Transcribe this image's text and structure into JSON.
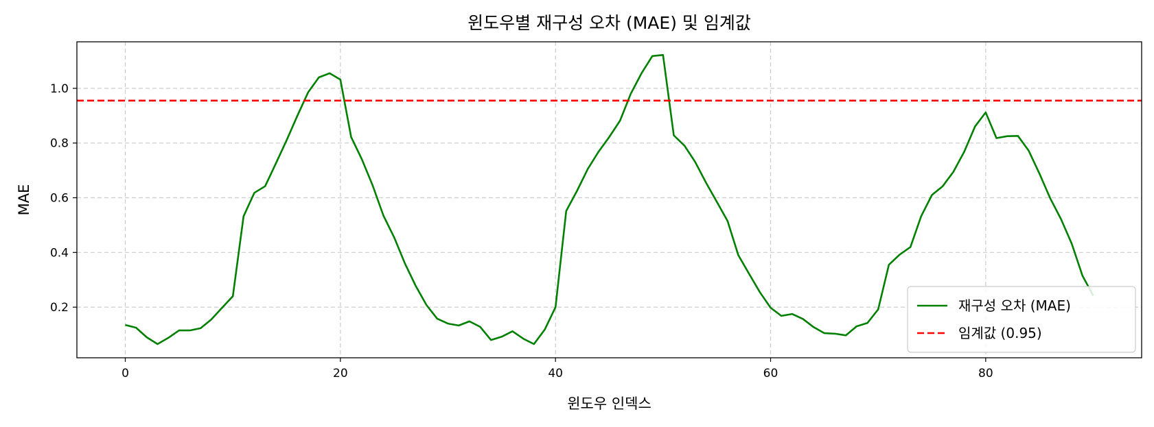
{
  "chart_data": {
    "type": "line",
    "title": "윈도우별 재구성 오차 (MAE) 및 임계값",
    "xlabel": "윈도우 인덱스",
    "ylabel": "MAE",
    "xlim": [
      -4.5,
      94.5
    ],
    "ylim": [
      0.015,
      1.17
    ],
    "xticks": [
      0,
      20,
      40,
      60,
      80
    ],
    "xtick_labels": [
      "0",
      "20",
      "40",
      "60",
      "80"
    ],
    "yticks": [
      0.2,
      0.4,
      0.6,
      0.8,
      1.0
    ],
    "ytick_labels": [
      "0.2",
      "0.4",
      "0.6",
      "0.8",
      "1.0"
    ],
    "grid": true,
    "legend_position": "lower-right",
    "series": [
      {
        "name": "재구성 오차 (MAE)",
        "color": "#008000",
        "style": "solid",
        "x": [
          0,
          1,
          2,
          3,
          4,
          5,
          6,
          7,
          8,
          9,
          10,
          11,
          12,
          13,
          14,
          15,
          16,
          17,
          18,
          19,
          20,
          21,
          22,
          23,
          24,
          25,
          26,
          27,
          28,
          29,
          30,
          31,
          32,
          33,
          34,
          35,
          36,
          37,
          38,
          39,
          40,
          41,
          42,
          43,
          44,
          45,
          46,
          47,
          48,
          49,
          50,
          51,
          52,
          53,
          54,
          55,
          56,
          57,
          58,
          59,
          60,
          61,
          62,
          63,
          64,
          65,
          66,
          67,
          68,
          69,
          70,
          71,
          72,
          73,
          74,
          75,
          76,
          77,
          78,
          79,
          80,
          81,
          82,
          83,
          84,
          85,
          86,
          87,
          88,
          89,
          90
        ],
        "y": [
          0.135,
          0.125,
          0.09,
          0.065,
          0.088,
          0.115,
          0.115,
          0.123,
          0.155,
          0.198,
          0.24,
          0.532,
          0.618,
          0.642,
          0.725,
          0.81,
          0.9,
          0.985,
          1.04,
          1.055,
          1.032,
          0.822,
          0.74,
          0.645,
          0.535,
          0.455,
          0.36,
          0.278,
          0.208,
          0.158,
          0.14,
          0.133,
          0.148,
          0.128,
          0.08,
          0.092,
          0.112,
          0.085,
          0.065,
          0.118,
          0.2,
          0.552,
          0.625,
          0.705,
          0.768,
          0.822,
          0.882,
          0.98,
          1.055,
          1.118,
          1.122,
          0.828,
          0.79,
          0.73,
          0.655,
          0.585,
          0.515,
          0.39,
          0.322,
          0.255,
          0.198,
          0.168,
          0.175,
          0.157,
          0.127,
          0.105,
          0.103,
          0.097,
          0.13,
          0.142,
          0.192,
          0.355,
          0.392,
          0.42,
          0.532,
          0.61,
          0.642,
          0.695,
          0.768,
          0.86,
          0.912,
          0.818,
          0.825,
          0.826,
          0.772,
          0.688,
          0.598,
          0.522,
          0.432,
          0.315,
          0.242
        ]
      },
      {
        "name": "임계값 (0.95)",
        "color": "#ff0000",
        "style": "dashed",
        "y_constant": 0.955
      }
    ]
  }
}
